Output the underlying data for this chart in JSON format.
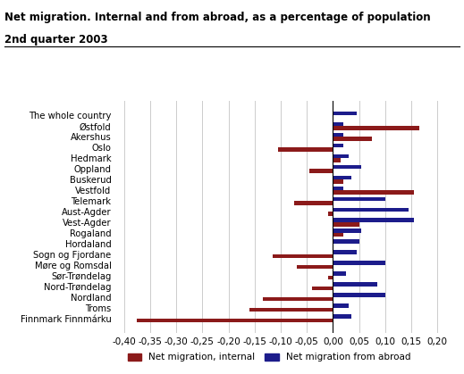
{
  "title_line1": "Net migration. Internal and from abroad, as a percentage of population",
  "title_line2": "2nd quarter 2003",
  "categories": [
    "The whole country",
    "Østfold",
    "Akershus",
    "Oslo",
    "Hedmark",
    "Oppland",
    "Buskerud",
    "Vestfold",
    "Telemark",
    "Aust-Agder",
    "Vest-Agder",
    "Rogaland",
    "Hordaland",
    "Sogn og Fjordane",
    "Møre og Romsdal",
    "Sør-Trøndelag",
    "Nord-Trøndelag",
    "Nordland",
    "Troms",
    "Finnmark Finnmárku"
  ],
  "internal": [
    0.0,
    0.165,
    0.075,
    -0.105,
    0.015,
    -0.045,
    0.02,
    0.155,
    -0.075,
    -0.01,
    0.05,
    0.02,
    0.0,
    -0.115,
    -0.07,
    -0.01,
    -0.04,
    -0.135,
    -0.16,
    -0.375
  ],
  "abroad": [
    0.045,
    0.02,
    0.02,
    0.02,
    0.03,
    0.055,
    0.035,
    0.02,
    0.1,
    0.145,
    0.155,
    0.055,
    0.05,
    0.045,
    0.1,
    0.025,
    0.085,
    0.1,
    0.03,
    0.035
  ],
  "color_internal": "#8B1A1A",
  "color_abroad": "#1C1C8B",
  "xlim": [
    -0.42,
    0.22
  ],
  "xticks": [
    -0.4,
    -0.35,
    -0.3,
    -0.25,
    -0.2,
    -0.15,
    -0.1,
    -0.05,
    0.0,
    0.05,
    0.1,
    0.15,
    0.2
  ],
  "xtick_labels": [
    "-0,40",
    "-0,35",
    "-0,30",
    "-0,25",
    "-0,20",
    "-0,15",
    "-0,10",
    "-0,05",
    "0,00",
    "0,05",
    "0,10",
    "0,15",
    "0,20"
  ],
  "legend_internal": "Net migration, internal",
  "legend_abroad": "Net migration from abroad",
  "bg_color": "#ffffff",
  "grid_color": "#cccccc"
}
